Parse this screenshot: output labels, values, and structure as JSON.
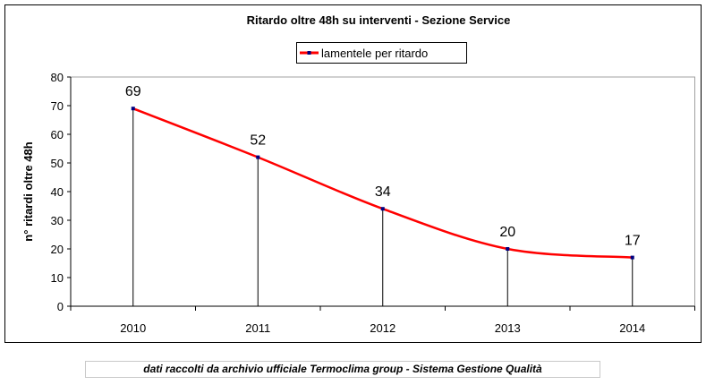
{
  "chart_data": {
    "type": "line",
    "title": "Ritardo oltre 48h su interventi - Sezione Service",
    "xlabel": "",
    "ylabel": "n° ritardi oltre 48h",
    "categories": [
      "2010",
      "2011",
      "2012",
      "2013",
      "2014"
    ],
    "series": [
      {
        "name": "lamentele per ritardo",
        "values": [
          69,
          52,
          34,
          20,
          17
        ],
        "color": "#ff0000",
        "marker_color": "#000080"
      }
    ],
    "ylim": [
      0,
      80
    ],
    "yticks": [
      0,
      10,
      20,
      30,
      40,
      50,
      60,
      70,
      80
    ],
    "legend": "top-center",
    "grid": false,
    "drop_lines": true
  },
  "caption": "dati raccolti da archivio ufficiale Termoclima group - Sistema Gestione Qualità"
}
